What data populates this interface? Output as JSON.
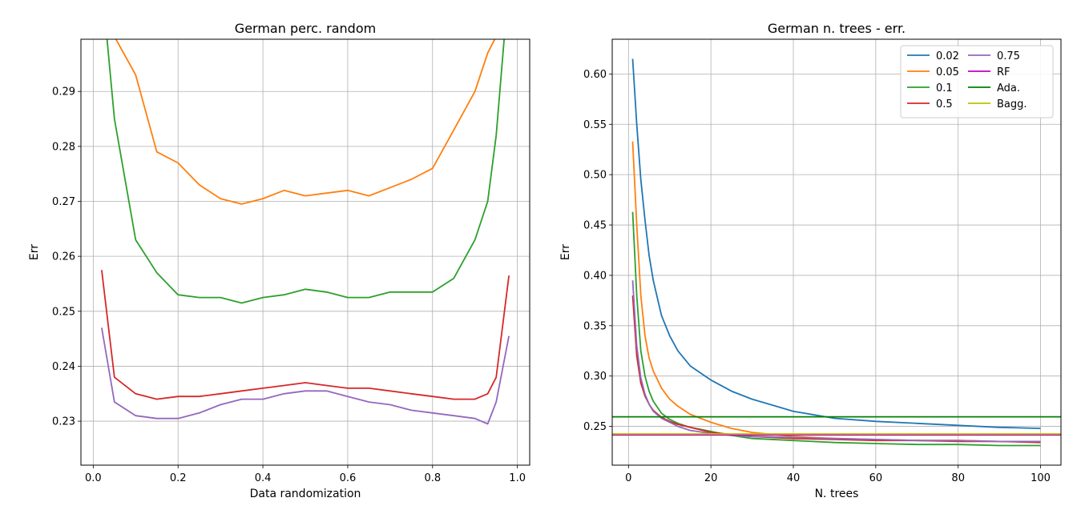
{
  "chart_data": [
    {
      "type": "line",
      "title": "German perc. random",
      "xlabel": "Data randomization",
      "ylabel": "Err",
      "xlim": [
        -0.029,
        1.029
      ],
      "ylim": [
        0.222,
        0.2995
      ],
      "xticks": [
        0.0,
        0.2,
        0.4,
        0.6,
        0.8,
        1.0
      ],
      "xtick_labels": [
        "0.0",
        "0.2",
        "0.4",
        "0.6",
        "0.8",
        "1.0"
      ],
      "yticks": [
        0.23,
        0.24,
        0.25,
        0.26,
        0.27,
        0.28,
        0.29
      ],
      "ytick_labels": [
        "0.23",
        "0.24",
        "0.25",
        "0.26",
        "0.27",
        "0.28",
        "0.29"
      ],
      "grid": true,
      "x": [
        0.02,
        0.05,
        0.1,
        0.15,
        0.2,
        0.25,
        0.3,
        0.35,
        0.4,
        0.45,
        0.5,
        0.55,
        0.6,
        0.65,
        0.7,
        0.75,
        0.8,
        0.85,
        0.9,
        0.93,
        0.95,
        0.98
      ],
      "series": [
        {
          "color": "#ff7f0e",
          "values": [
            0.31,
            0.3,
            0.293,
            0.279,
            0.277,
            0.273,
            0.2705,
            0.2695,
            0.2705,
            0.272,
            0.271,
            0.2715,
            0.272,
            0.271,
            0.2725,
            0.274,
            0.276,
            0.283,
            0.29,
            0.297,
            0.3,
            0.31
          ]
        },
        {
          "color": "#2ca02c",
          "values": [
            0.31,
            0.285,
            0.263,
            0.257,
            0.253,
            0.2525,
            0.2525,
            0.2515,
            0.2525,
            0.253,
            0.254,
            0.2535,
            0.2525,
            0.2525,
            0.2535,
            0.2535,
            0.2535,
            0.256,
            0.263,
            0.27,
            0.282,
            0.31
          ]
        },
        {
          "color": "#d62728",
          "values": [
            0.2575,
            0.238,
            0.235,
            0.234,
            0.2345,
            0.2345,
            0.235,
            0.2355,
            0.236,
            0.2365,
            0.237,
            0.2365,
            0.236,
            0.236,
            0.2355,
            0.235,
            0.2345,
            0.234,
            0.234,
            0.235,
            0.238,
            0.2565
          ]
        },
        {
          "color": "#9467bd",
          "values": [
            0.247,
            0.2335,
            0.231,
            0.2305,
            0.2305,
            0.2315,
            0.233,
            0.234,
            0.234,
            0.235,
            0.2355,
            0.2355,
            0.2345,
            0.2335,
            0.233,
            0.232,
            0.2315,
            0.231,
            0.2305,
            0.2295,
            0.2335,
            0.2455
          ]
        }
      ]
    },
    {
      "type": "line",
      "title": "German n. trees - err.",
      "xlabel": "N. trees",
      "ylabel": "Err",
      "xlim": [
        -3.95,
        104.95
      ],
      "ylim": [
        0.2115,
        0.6345
      ],
      "xticks": [
        0,
        20,
        40,
        60,
        80,
        100
      ],
      "xtick_labels": [
        "0",
        "20",
        "40",
        "60",
        "80",
        "100"
      ],
      "yticks": [
        0.25,
        0.3,
        0.35,
        0.4,
        0.45,
        0.5,
        0.55,
        0.6
      ],
      "ytick_labels": [
        "0.25",
        "0.30",
        "0.35",
        "0.40",
        "0.45",
        "0.50",
        "0.55",
        "0.60"
      ],
      "grid": true,
      "legend_position": "top-right",
      "x": [
        1,
        2,
        3,
        4,
        5,
        6,
        8,
        10,
        12,
        15,
        20,
        25,
        30,
        40,
        50,
        60,
        70,
        80,
        90,
        100
      ],
      "series": [
        {
          "name": "0.02",
          "color": "#1f77b4",
          "values": [
            0.615,
            0.55,
            0.495,
            0.455,
            0.42,
            0.395,
            0.36,
            0.34,
            0.325,
            0.31,
            0.296,
            0.285,
            0.277,
            0.265,
            0.258,
            0.255,
            0.253,
            0.251,
            0.249,
            0.248
          ]
        },
        {
          "name": "0.05",
          "color": "#ff7f0e",
          "values": [
            0.533,
            0.45,
            0.38,
            0.34,
            0.318,
            0.305,
            0.288,
            0.277,
            0.27,
            0.262,
            0.254,
            0.248,
            0.244,
            0.24,
            0.238,
            0.237,
            0.236,
            0.236,
            0.235,
            0.235
          ]
        },
        {
          "name": "0.1",
          "color": "#2ca02c",
          "values": [
            0.463,
            0.38,
            0.325,
            0.3,
            0.285,
            0.275,
            0.263,
            0.257,
            0.253,
            0.249,
            0.245,
            0.241,
            0.238,
            0.236,
            0.234,
            0.233,
            0.232,
            0.232,
            0.231,
            0.231
          ]
        },
        {
          "name": "0.5",
          "color": "#d62728",
          "values": [
            0.38,
            0.32,
            0.293,
            0.28,
            0.272,
            0.266,
            0.259,
            0.255,
            0.252,
            0.249,
            0.244,
            0.242,
            0.24,
            0.238,
            0.237,
            0.236,
            0.236,
            0.235,
            0.235,
            0.234
          ]
        },
        {
          "name": "0.75",
          "color": "#9467bd",
          "values": [
            0.395,
            0.33,
            0.298,
            0.282,
            0.272,
            0.265,
            0.258,
            0.254,
            0.25,
            0.246,
            0.243,
            0.241,
            0.24,
            0.239,
            0.238,
            0.237,
            0.236,
            0.236,
            0.235,
            0.235
          ]
        },
        {
          "name": "RF",
          "color": "#c000c0",
          "constant": 0.2415
        },
        {
          "name": "Ada.",
          "color": "#008000",
          "constant": 0.2595
        },
        {
          "name": "Bagg.",
          "color": "#bfbf00",
          "constant": 0.2425
        }
      ]
    }
  ]
}
